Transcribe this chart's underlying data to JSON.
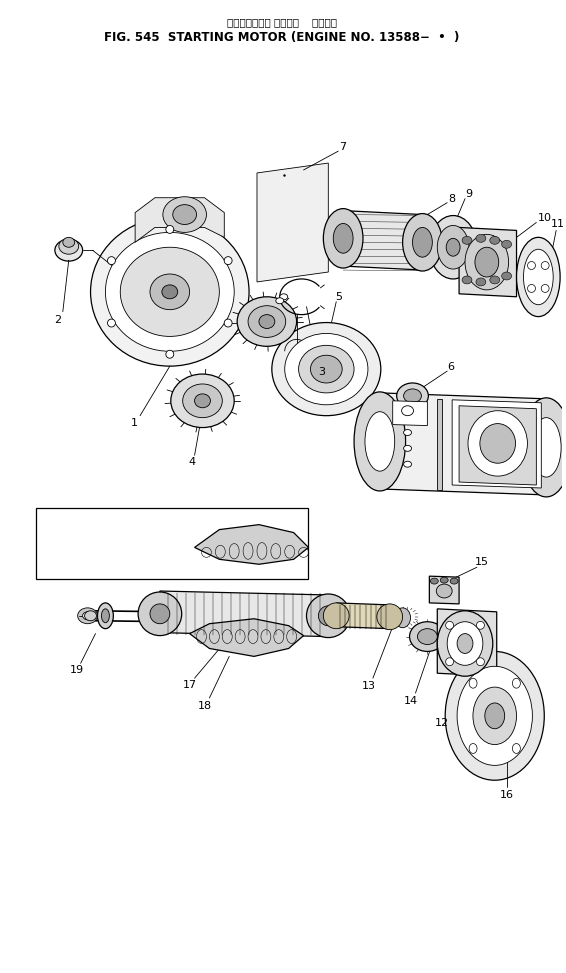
{
  "title_japanese": "スターティング モーター    適用号機",
  "title_english": "FIG. 545  STARTING MOTOR (ENGINE NO. 13588−  •  )",
  "bg_color": "#ffffff",
  "line_color": "#000000",
  "title_fontsize": 7.5,
  "subtitle_fontsize": 8.5,
  "label_fontsize": 8,
  "fig_width": 5.66,
  "fig_height": 9.73,
  "dpi": 100
}
